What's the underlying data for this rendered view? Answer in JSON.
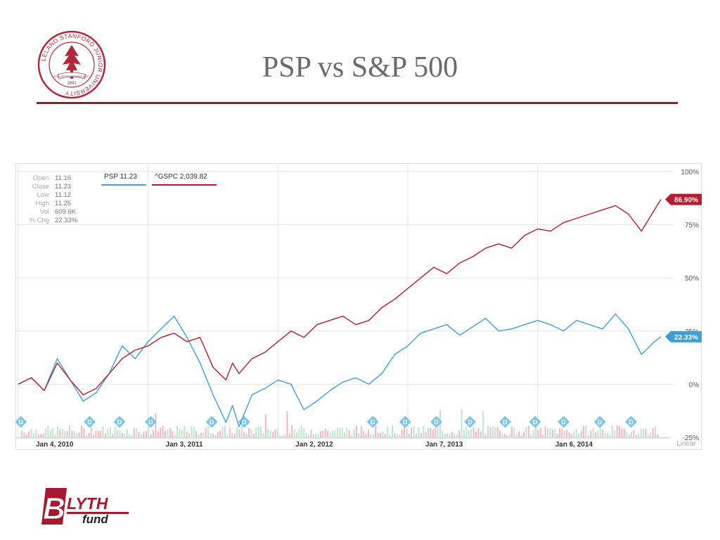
{
  "slide": {
    "title": "PSP vs S&P 500"
  },
  "seal": {
    "ring_text": "LELAND STANFORD JUNIOR UNIVERSITY",
    "motto": "DIE LUFT DER FREIHEIT WEHT",
    "year": "1891",
    "color": "#b1283a"
  },
  "logo": {
    "big_letter": "B",
    "word1": "LYTH",
    "word2": "fund",
    "color": "#a6192e"
  },
  "chart_data": {
    "type": "line",
    "x_ticks": [
      "Jan 4, 2010",
      "Jan 3, 2011",
      "Jan 2, 2012",
      "Jan 7, 2013",
      "Jan 6, 2014"
    ],
    "x_range": [
      2010.0,
      2014.95
    ],
    "y_ticks": [
      "100%",
      "75%",
      "50%",
      "25%",
      "0%",
      "-25%"
    ],
    "ylim": [
      -25,
      100
    ],
    "scale_label": "Linear",
    "grid": true,
    "stats": [
      {
        "label": "Open",
        "value": "11.16"
      },
      {
        "label": "Close",
        "value": "11.23"
      },
      {
        "label": "Low",
        "value": "11.12"
      },
      {
        "label": "High",
        "value": "11.25"
      },
      {
        "label": "Vol",
        "value": "609.6K"
      },
      {
        "label": "% Chg",
        "value": "22.33%"
      }
    ],
    "legend_placement": "top-left",
    "series": [
      {
        "name": "PSP 11.23",
        "color": "#3fa0d8",
        "end_label": "22.33%",
        "x": [
          2010.0,
          2010.1,
          2010.2,
          2010.3,
          2010.4,
          2010.5,
          2010.6,
          2010.7,
          2010.8,
          2010.9,
          2011.0,
          2011.1,
          2011.2,
          2011.3,
          2011.4,
          2011.5,
          2011.6,
          2011.65,
          2011.7,
          2011.8,
          2011.9,
          2012.0,
          2012.1,
          2012.2,
          2012.3,
          2012.4,
          2012.5,
          2012.6,
          2012.7,
          2012.8,
          2012.9,
          2013.0,
          2013.1,
          2013.2,
          2013.3,
          2013.4,
          2013.5,
          2013.6,
          2013.7,
          2013.8,
          2013.9,
          2014.0,
          2014.1,
          2014.2,
          2014.3,
          2014.4,
          2014.5,
          2014.6,
          2014.7,
          2014.8,
          2014.9,
          2014.95
        ],
        "y": [
          0,
          3,
          -3,
          12,
          2,
          -8,
          -4,
          5,
          18,
          12,
          20,
          26,
          32,
          22,
          10,
          -5,
          -18,
          -10,
          -20,
          -5,
          -2,
          2,
          0,
          -12,
          -8,
          -3,
          1,
          3,
          0,
          5,
          14,
          18,
          24,
          26,
          28,
          23,
          27,
          31,
          25,
          26,
          28,
          30,
          28,
          25,
          30,
          28,
          26,
          33,
          26,
          14,
          20,
          22.33
        ]
      },
      {
        "name": "^GSPC 2,039.82",
        "color": "#b71c2c",
        "end_label": "86.90%",
        "x": [
          2010.0,
          2010.1,
          2010.2,
          2010.3,
          2010.4,
          2010.5,
          2010.6,
          2010.7,
          2010.8,
          2010.9,
          2011.0,
          2011.1,
          2011.2,
          2011.3,
          2011.4,
          2011.5,
          2011.6,
          2011.65,
          2011.7,
          2011.8,
          2011.9,
          2012.0,
          2012.1,
          2012.2,
          2012.3,
          2012.4,
          2012.5,
          2012.6,
          2012.7,
          2012.8,
          2012.9,
          2013.0,
          2013.1,
          2013.2,
          2013.3,
          2013.4,
          2013.5,
          2013.6,
          2013.7,
          2013.8,
          2013.9,
          2014.0,
          2014.1,
          2014.2,
          2014.3,
          2014.4,
          2014.5,
          2014.6,
          2014.7,
          2014.8,
          2014.9,
          2014.95
        ],
        "y": [
          0,
          3,
          -3,
          10,
          2,
          -5,
          -2,
          5,
          12,
          16,
          18,
          22,
          24,
          20,
          22,
          8,
          2,
          10,
          5,
          12,
          15,
          20,
          25,
          22,
          28,
          30,
          32,
          28,
          30,
          36,
          40,
          45,
          50,
          55,
          52,
          57,
          60,
          64,
          66,
          64,
          70,
          73,
          72,
          76,
          78,
          80,
          82,
          84,
          80,
          72,
          82,
          86.9
        ]
      }
    ],
    "dividend_markers": [
      2010.02,
      2010.55,
      2010.78,
      2011.02,
      2011.49,
      2011.74,
      2012.73,
      2012.98,
      2013.22,
      2013.48,
      2013.75,
      2013.98,
      2014.2,
      2014.48,
      2014.72
    ],
    "dividend_label": "D"
  }
}
